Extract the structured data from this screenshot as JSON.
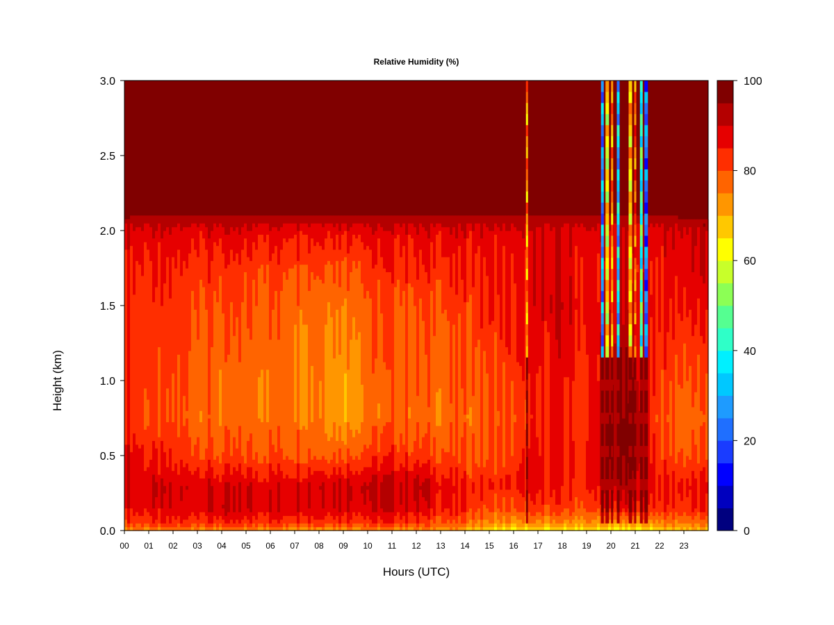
{
  "chart_data": {
    "type": "heatmap",
    "title": "Relative Humidity (%)",
    "xlabel": "Hours (UTC)",
    "ylabel": "Height (km)",
    "xlim": [
      0,
      24
    ],
    "ylim": [
      0,
      3
    ],
    "x_ticks": [
      "00",
      "01",
      "02",
      "03",
      "04",
      "05",
      "06",
      "07",
      "08",
      "09",
      "10",
      "11",
      "12",
      "13",
      "14",
      "15",
      "16",
      "17",
      "18",
      "19",
      "20",
      "21",
      "22",
      "23"
    ],
    "y_ticks": [
      "0.0",
      "0.5",
      "1.0",
      "1.5",
      "2.0",
      "2.5",
      "3.0"
    ],
    "colorbar": {
      "min": 0,
      "max": 100,
      "step": 5,
      "tick_labels": [
        "0",
        "20",
        "40",
        "60",
        "80",
        "100"
      ],
      "colors": [
        "#00007f",
        "#0000bf",
        "#0000ff",
        "#1a3cff",
        "#1f6fff",
        "#1e9bff",
        "#00c8ff",
        "#00f0ff",
        "#2fffc8",
        "#55ff91",
        "#8cff55",
        "#c8ff2a",
        "#ffff00",
        "#ffc800",
        "#ff9600",
        "#ff6400",
        "#ff2e00",
        "#e60000",
        "#b40000",
        "#800000"
      ]
    },
    "x": [
      0,
      1,
      2,
      3,
      4,
      5,
      6,
      7,
      8,
      9,
      10,
      11,
      12,
      13,
      14,
      15,
      16,
      17,
      18,
      19,
      20,
      21,
      22,
      23,
      24
    ],
    "y": [
      0.0,
      0.05,
      0.15,
      0.3,
      0.5,
      0.75,
      1.0,
      1.25,
      1.5,
      1.75,
      2.0,
      2.1,
      2.2,
      2.5,
      3.0
    ],
    "z": [
      [
        75,
        82,
        88,
        90,
        90,
        85,
        84,
        85,
        86,
        86,
        90,
        96,
        100,
        100,
        100
      ],
      [
        74,
        82,
        87,
        89,
        84,
        80,
        82,
        82,
        82,
        84,
        88,
        95,
        100,
        100,
        100
      ],
      [
        75,
        83,
        88,
        88,
        83,
        80,
        80,
        82,
        82,
        84,
        88,
        95,
        100,
        100,
        100
      ],
      [
        74,
        83,
        89,
        90,
        82,
        78,
        80,
        80,
        81,
        84,
        88,
        95,
        100,
        100,
        100
      ],
      [
        74,
        83,
        90,
        88,
        80,
        76,
        76,
        78,
        80,
        82,
        88,
        95,
        100,
        100,
        100
      ],
      [
        74,
        83,
        89,
        89,
        80,
        77,
        77,
        78,
        80,
        82,
        88,
        95,
        100,
        100,
        100
      ],
      [
        74,
        84,
        89,
        88,
        81,
        77,
        77,
        78,
        80,
        82,
        88,
        95,
        100,
        100,
        100
      ],
      [
        74,
        84,
        90,
        89,
        81,
        77,
        77,
        77,
        78,
        82,
        88,
        95,
        100,
        100,
        100
      ],
      [
        73,
        84,
        90,
        91,
        80,
        76,
        76,
        77,
        78,
        82,
        88,
        95,
        100,
        100,
        100
      ],
      [
        73,
        83,
        90,
        91,
        80,
        72,
        72,
        74,
        77,
        80,
        88,
        95,
        100,
        100,
        100
      ],
      [
        74,
        83,
        90,
        91,
        82,
        76,
        77,
        78,
        80,
        82,
        88,
        95,
        100,
        100,
        100
      ],
      [
        74,
        83,
        90,
        91,
        84,
        78,
        78,
        80,
        80,
        84,
        88,
        95,
        100,
        100,
        100
      ],
      [
        73,
        82,
        89,
        92,
        82,
        77,
        78,
        79,
        80,
        84,
        88,
        95,
        100,
        100,
        100
      ],
      [
        73,
        80,
        86,
        88,
        81,
        77,
        78,
        79,
        80,
        84,
        88,
        95,
        100,
        100,
        100
      ],
      [
        70,
        78,
        84,
        84,
        80,
        77,
        79,
        81,
        82,
        84,
        88,
        95,
        100,
        100,
        100
      ],
      [
        65,
        74,
        80,
        84,
        80,
        79,
        80,
        82,
        84,
        86,
        88,
        95,
        100,
        100,
        100
      ],
      [
        62,
        72,
        80,
        84,
        82,
        80,
        82,
        84,
        84,
        86,
        88,
        95,
        100,
        100,
        100
      ],
      [
        63,
        73,
        82,
        86,
        85,
        84,
        84,
        86,
        88,
        88,
        88,
        95,
        100,
        100,
        100
      ],
      [
        64,
        74,
        82,
        85,
        86,
        86,
        87,
        88,
        90,
        88,
        88,
        95,
        100,
        100,
        100
      ],
      [
        63,
        73,
        80,
        84,
        84,
        82,
        82,
        84,
        86,
        86,
        88,
        95,
        100,
        100,
        100
      ],
      [
        62,
        72,
        85,
        92,
        96,
        96,
        94,
        92,
        90,
        88,
        90,
        95,
        100,
        100,
        100
      ],
      [
        62,
        72,
        86,
        92,
        96,
        96,
        94,
        92,
        90,
        88,
        90,
        95,
        100,
        100,
        100
      ],
      [
        66,
        75,
        84,
        86,
        82,
        80,
        82,
        84,
        86,
        86,
        88,
        95,
        100,
        100,
        100
      ],
      [
        68,
        76,
        84,
        86,
        80,
        77,
        80,
        82,
        86,
        88,
        90,
        96,
        100,
        100,
        100
      ],
      [
        68,
        76,
        84,
        86,
        80,
        77,
        80,
        82,
        86,
        88,
        90,
        96,
        100,
        100,
        100
      ]
    ],
    "dry_columns": [
      {
        "hour": 16.55,
        "min_rh": 60
      },
      {
        "hour": 19.65,
        "min_rh": 15
      },
      {
        "hour": 19.85,
        "min_rh": 50
      },
      {
        "hour": 20.05,
        "min_rh": 60
      },
      {
        "hour": 20.3,
        "min_rh": 20
      },
      {
        "hour": 20.8,
        "min_rh": 55
      },
      {
        "hour": 21.0,
        "min_rh": 65
      },
      {
        "hour": 21.25,
        "min_rh": 30
      },
      {
        "hour": 21.45,
        "min_rh": 10
      }
    ]
  }
}
